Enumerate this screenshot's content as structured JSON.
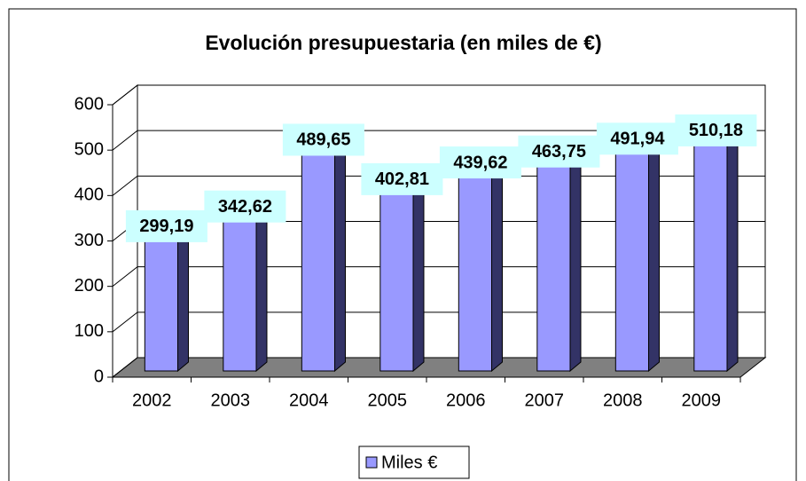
{
  "chart_data": {
    "type": "bar3d",
    "title": "Evolución presupuestaria (en miles de €)",
    "categories": [
      "2002",
      "2003",
      "2004",
      "2005",
      "2006",
      "2007",
      "2008",
      "2009"
    ],
    "series": [
      {
        "name": "Miles €",
        "color": "#9999ff",
        "values": [
          299.19,
          342.62,
          489.65,
          402.81,
          439.62,
          463.75,
          491.94,
          510.18
        ],
        "value_labels": [
          "299,19",
          "342,62",
          "489,65",
          "402,81",
          "439,62",
          "463,75",
          "491,94",
          "510,18"
        ]
      }
    ],
    "ylim": [
      0,
      600
    ],
    "yticks": [
      0,
      100,
      200,
      300,
      400,
      500,
      600
    ],
    "grid": true,
    "legend": "bottom"
  }
}
